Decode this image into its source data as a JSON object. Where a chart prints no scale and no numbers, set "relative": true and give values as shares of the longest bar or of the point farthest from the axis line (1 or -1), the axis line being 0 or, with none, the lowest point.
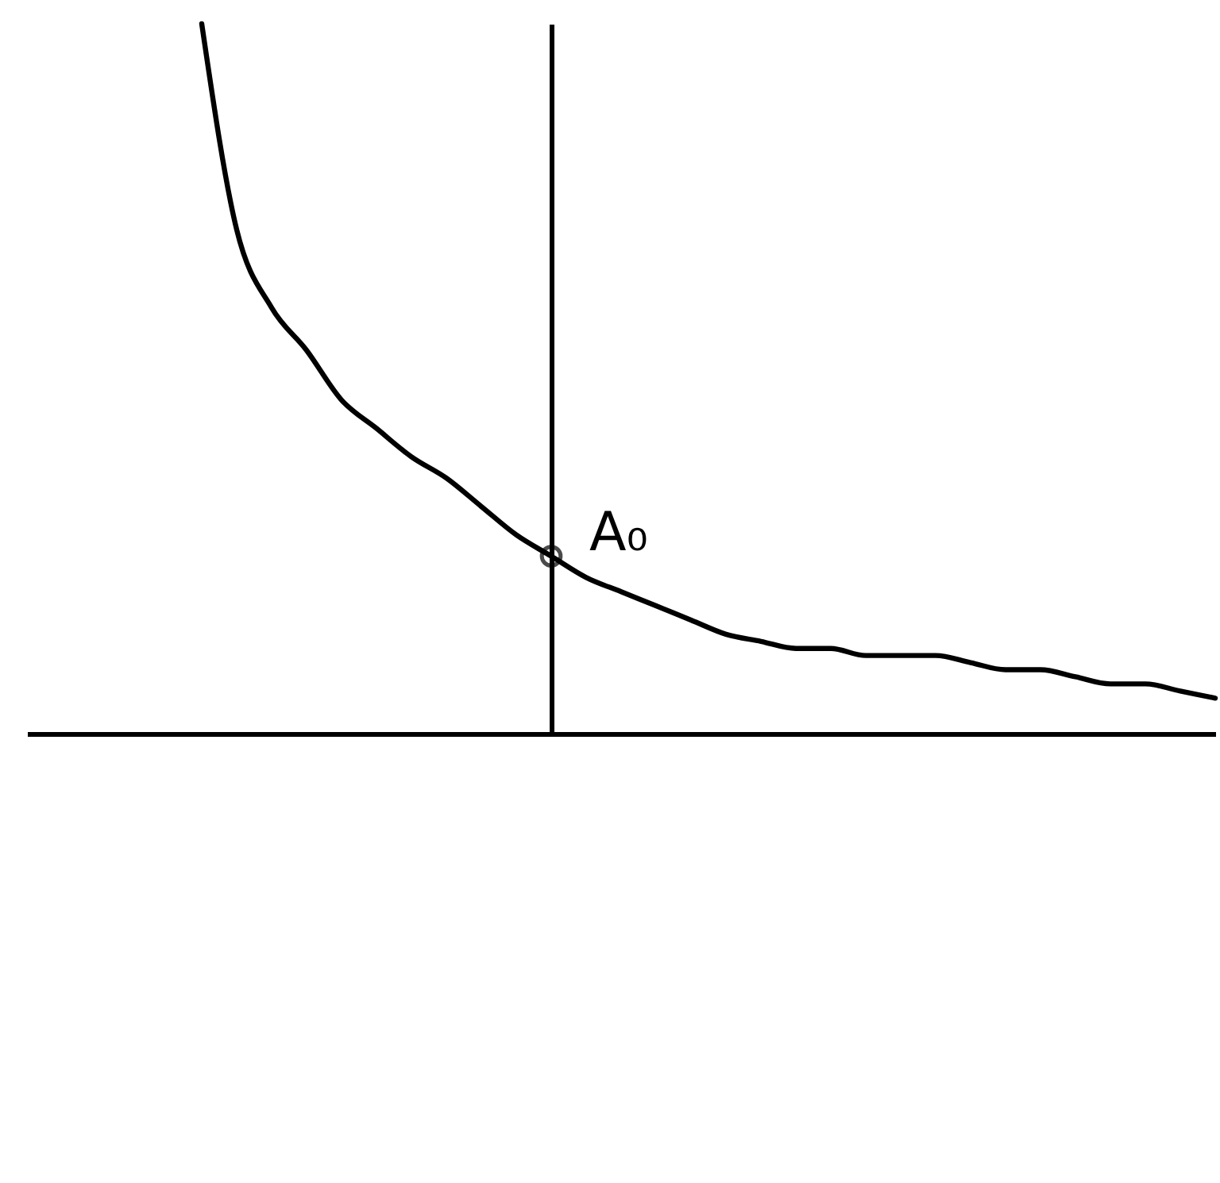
{
  "chart_data": {
    "type": "line",
    "relative": true,
    "grid": false,
    "categories": [
      null,
      null,
      null,
      null,
      null,
      null,
      null,
      null,
      null,
      null,
      null,
      null,
      null,
      null,
      null,
      null,
      null,
      null,
      null,
      null,
      null,
      null,
      null,
      null,
      null,
      null,
      null,
      null,
      null,
      null,
      null,
      null,
      null,
      null,
      null
    ],
    "series": [
      {
        "color": "#000000",
        "values": [
          null,
          null,
          null,
          null,
          null,
          1.0,
          0.71,
          0.6,
          0.54,
          0.47,
          0.43,
          0.39,
          0.36,
          0.32,
          0.28,
          0.25,
          0.22,
          0.2,
          0.18,
          0.16,
          0.14,
          0.13,
          0.12,
          0.12,
          0.11,
          0.11,
          0.11,
          0.1,
          0.09,
          0.09,
          0.08,
          0.07,
          0.07,
          0.06,
          0.05
        ]
      }
    ],
    "annotations": [
      "A₀"
    ]
  }
}
